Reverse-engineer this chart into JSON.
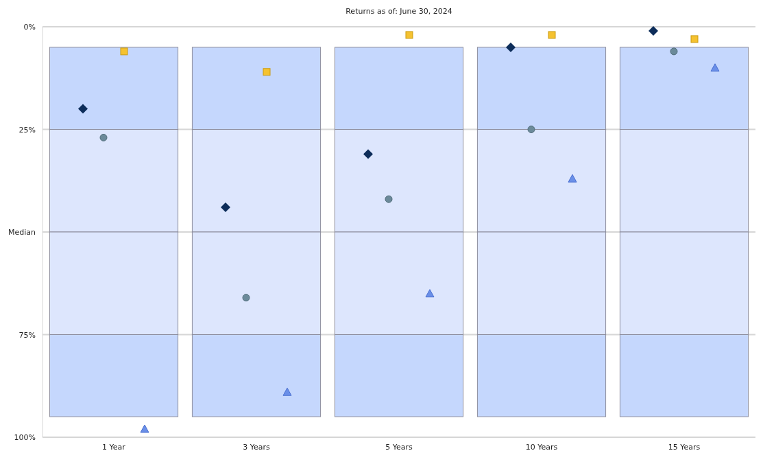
{
  "chart_data": {
    "type": "bar",
    "title": "Returns as of: June 30, 2024",
    "categories": [
      "1 Year",
      "3 Years",
      "5 Years",
      "10 Years",
      "15 Years"
    ],
    "ylim": [
      100,
      0
    ],
    "yticks": [
      {
        "value": 0,
        "label": "0%"
      },
      {
        "value": 25,
        "label": "25%"
      },
      {
        "value": 50,
        "label": "Median"
      },
      {
        "value": 75,
        "label": "75%"
      },
      {
        "value": 100,
        "label": "100%"
      }
    ],
    "grid": "y",
    "series": [
      {
        "color": "#c5d7fd",
        "base": [
          5,
          5,
          5,
          5,
          5
        ],
        "values": [
          20,
          20,
          20,
          20,
          20
        ]
      },
      {
        "color": "#dde6fd",
        "base": [
          25,
          25,
          25,
          25,
          25
        ],
        "values": [
          25,
          25,
          25,
          25,
          25
        ]
      },
      {
        "color": "#dde6fd",
        "base": [
          50,
          50,
          50,
          50,
          50
        ],
        "values": [
          25,
          25,
          25,
          25,
          25
        ]
      },
      {
        "color": "#c5d7fd",
        "base": [
          75,
          75,
          75,
          75,
          75
        ],
        "values": [
          20,
          20,
          20,
          20,
          20
        ]
      },
      {
        "type": "scatter",
        "marker": "diamond",
        "color": "#0d2d5a",
        "x": [
          "1 Year",
          "3 Years",
          "5 Years",
          "10 Years",
          "15 Years"
        ],
        "values": [
          20,
          44,
          31,
          5,
          1
        ]
      },
      {
        "type": "scatter",
        "marker": "circle",
        "color": "#6b8a9a",
        "x": [
          "1 Year",
          "3 Years",
          "5 Years",
          "10 Years",
          "15 Years"
        ],
        "values": [
          27,
          66,
          42,
          25,
          6
        ]
      },
      {
        "type": "scatter",
        "marker": "square",
        "color": "#f5c230",
        "x": [
          "1 Year",
          "3 Years",
          "5 Years",
          "10 Years",
          "15 Years"
        ],
        "values": [
          6,
          11,
          2,
          2,
          3
        ]
      },
      {
        "type": "scatter",
        "marker": "triangle",
        "color": "#6a8fe8",
        "x": [
          "1 Year",
          "3 Years",
          "5 Years",
          "10 Years",
          "15 Years"
        ],
        "values": [
          98,
          89,
          65,
          37,
          10
        ]
      }
    ]
  }
}
